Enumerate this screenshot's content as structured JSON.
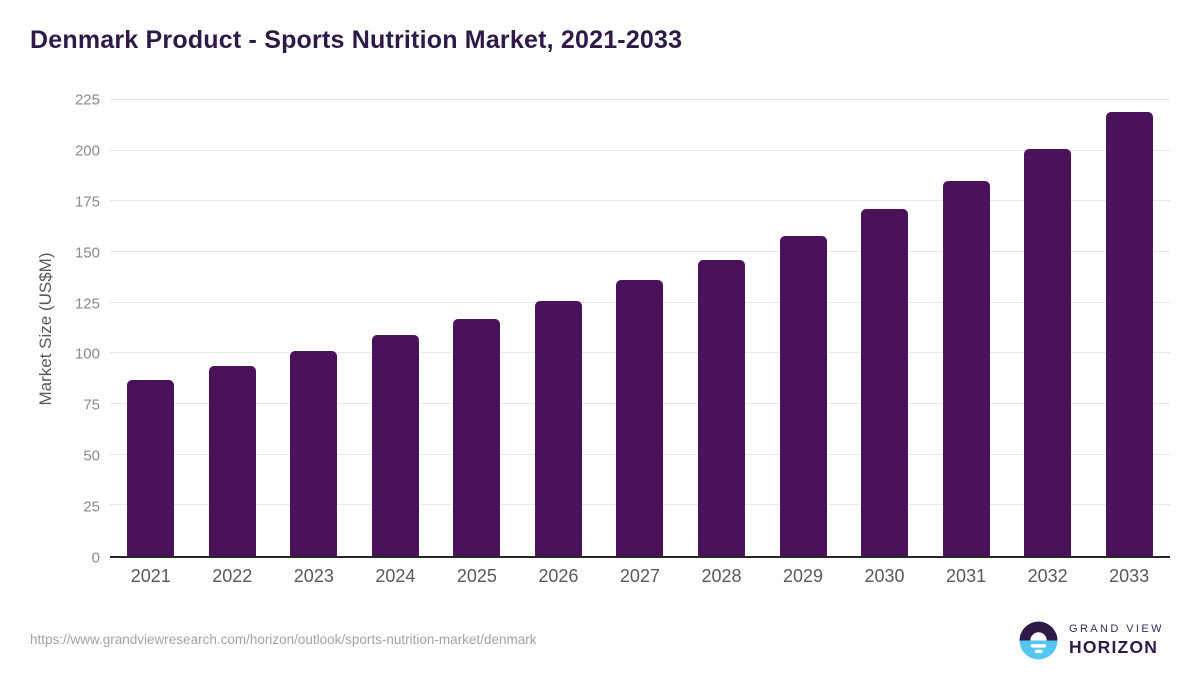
{
  "page": {
    "title": "Denmark Product - Sports Nutrition Market, 2021-2033",
    "source_url": "https://www.grandviewresearch.com/horizon/outlook/sports-nutrition-market/denmark"
  },
  "branding": {
    "name": "Grand View Horizon",
    "logo_line1": "GRAND VIEW",
    "logo_line2": "HORIZON",
    "logo_icon": "horizon-sunset-icon",
    "colors": {
      "logo_dark_purple": "#2e1a47",
      "logo_sky_blue": "#55c6f0",
      "logo_white": "#ffffff"
    }
  },
  "chart_data": {
    "type": "bar",
    "title": "Denmark Product - Sports Nutrition Market, 2021-2033",
    "categories": [
      "2021",
      "2022",
      "2023",
      "2024",
      "2025",
      "2026",
      "2027",
      "2028",
      "2029",
      "2030",
      "2031",
      "2032",
      "2033"
    ],
    "values": [
      87,
      94,
      101,
      109,
      117,
      126,
      136,
      146,
      158,
      171,
      185,
      201,
      219
    ],
    "xlabel": "",
    "ylabel": "Market Size (US$M)",
    "ylim": [
      0,
      225
    ],
    "yticks": [
      0,
      25,
      50,
      75,
      100,
      125,
      150,
      175,
      200,
      225
    ],
    "grid": true,
    "legend_position": "none",
    "bar_color": "#4a1259",
    "gridline_color": "#e7e7e7",
    "axis_line_color": "#262626",
    "tick_label_color": "#8a8a8a",
    "category_label_color": "#595959"
  }
}
